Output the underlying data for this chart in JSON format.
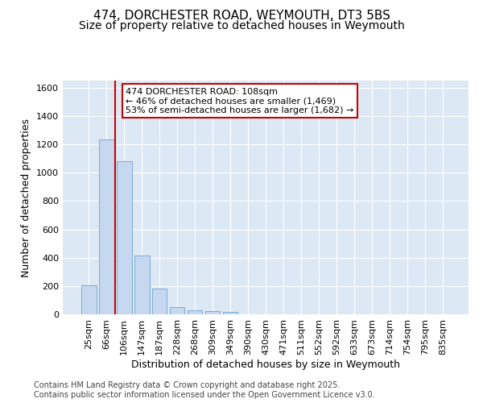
{
  "title_line1": "474, DORCHESTER ROAD, WEYMOUTH, DT3 5BS",
  "title_line2": "Size of property relative to detached houses in Weymouth",
  "xlabel": "Distribution of detached houses by size in Weymouth",
  "ylabel": "Number of detached properties",
  "categories": [
    "25sqm",
    "66sqm",
    "106sqm",
    "147sqm",
    "187sqm",
    "228sqm",
    "268sqm",
    "309sqm",
    "349sqm",
    "390sqm",
    "430sqm",
    "471sqm",
    "511sqm",
    "552sqm",
    "592sqm",
    "633sqm",
    "673sqm",
    "714sqm",
    "754sqm",
    "795sqm",
    "835sqm"
  ],
  "values": [
    205,
    1235,
    1080,
    415,
    180,
    50,
    28,
    22,
    15,
    0,
    0,
    0,
    0,
    0,
    0,
    0,
    0,
    0,
    0,
    0,
    0
  ],
  "bar_color": "#c5d8f0",
  "bar_edge_color": "#7aabd4",
  "vline_x_idx": 2,
  "vline_color": "#cc0000",
  "annotation_text": "474 DORCHESTER ROAD: 108sqm\n← 46% of detached houses are smaller (1,469)\n53% of semi-detached houses are larger (1,682) →",
  "annotation_box_color": "#ffffff",
  "annotation_box_edge": "#cc0000",
  "ylim": [
    0,
    1650
  ],
  "yticks": [
    0,
    200,
    400,
    600,
    800,
    1000,
    1200,
    1400,
    1600
  ],
  "background_color": "#dde8f5",
  "grid_color": "#ffffff",
  "figure_bg": "#ffffff",
  "footer_text": "Contains HM Land Registry data © Crown copyright and database right 2025.\nContains public sector information licensed under the Open Government Licence v3.0.",
  "title_fontsize": 11,
  "subtitle_fontsize": 10,
  "axis_label_fontsize": 9,
  "tick_fontsize": 8,
  "annotation_fontsize": 8,
  "footer_fontsize": 7
}
